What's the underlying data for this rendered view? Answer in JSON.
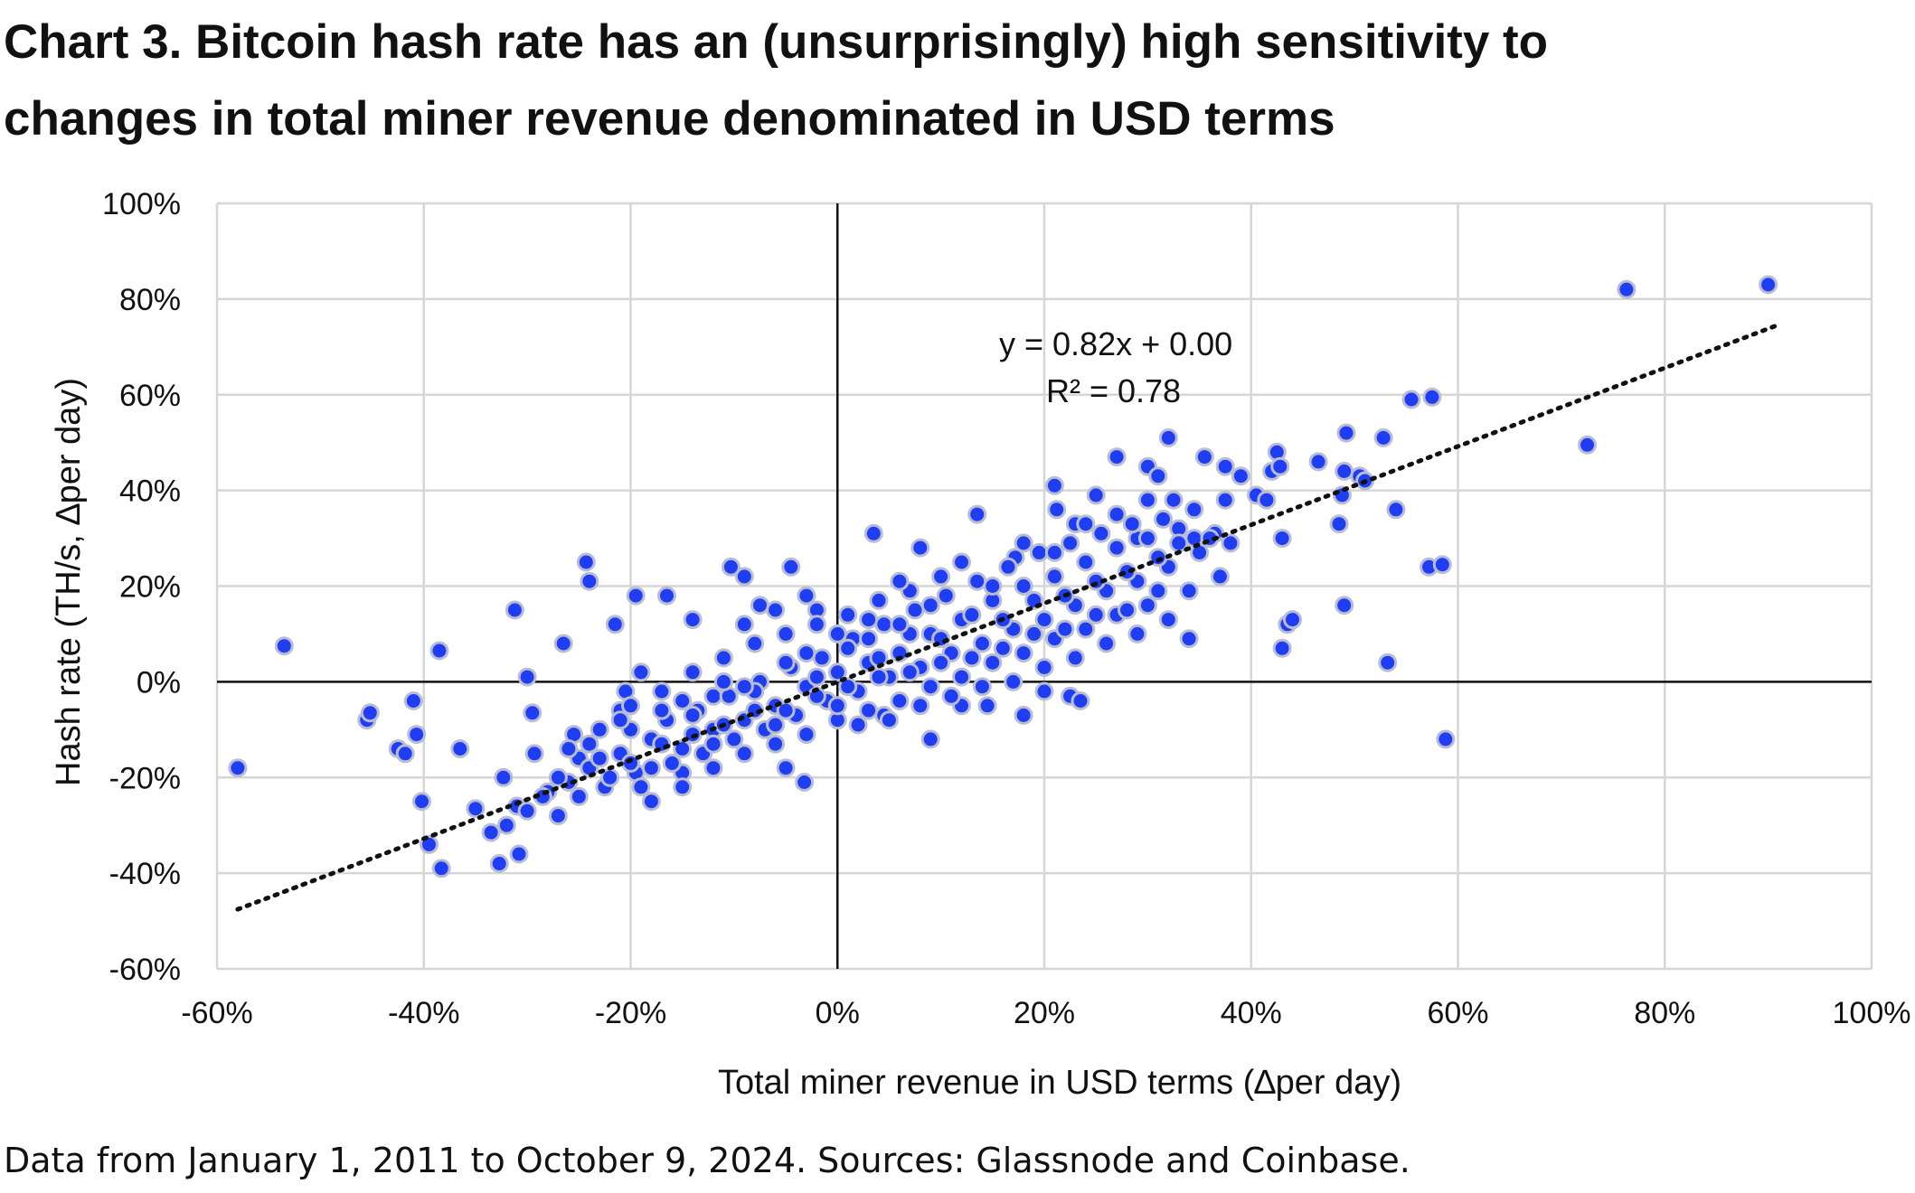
{
  "title_line1": "Chart 3. Bitcoin hash rate has an (unsurprisingly) high sensitivity to",
  "title_line2": "changes in total miner revenue denominated in USD terms",
  "source": "Data from January 1, 2011 to October 9, 2024. Sources: Glassnode and Coinbase.",
  "chart_data": {
    "type": "scatter",
    "xlabel": "Total miner revenue in USD terms (∆per day)",
    "ylabel": "Hash rate (TH/s, ∆per day)",
    "xlim": [
      -60,
      100
    ],
    "ylim": [
      -60,
      100
    ],
    "x_ticks": [
      "-60%",
      "-40%",
      "-20%",
      "0%",
      "20%",
      "40%",
      "60%",
      "80%",
      "100%"
    ],
    "y_ticks": [
      "100%",
      "80%",
      "60%",
      "40%",
      "20%",
      "0%",
      "-20%",
      "-40%",
      "-60%"
    ],
    "grid": true,
    "point_color": "#1f3df2",
    "point_edge_color": "#b9bdd4",
    "trendline": {
      "equation": "y = 0.82x + 0.00",
      "r_squared": "R² = 0.78",
      "slope": 0.82,
      "intercept": 0.0,
      "x_range": [
        -58,
        91
      ]
    },
    "series": [
      {
        "points": [
          [
            -58,
            -18
          ],
          [
            -53.5,
            7.5
          ],
          [
            -45.5,
            -8
          ],
          [
            -45.2,
            -6.5
          ],
          [
            -42.5,
            -14
          ],
          [
            -41.8,
            -15
          ],
          [
            -41,
            -4
          ],
          [
            -40.7,
            -11
          ],
          [
            -40.2,
            -25
          ],
          [
            -39.5,
            -34
          ],
          [
            -38.5,
            6.5
          ],
          [
            -38.3,
            -39
          ],
          [
            -36.5,
            -14
          ],
          [
            -35,
            -26.5
          ],
          [
            -33.5,
            -31.5
          ],
          [
            -32.7,
            -38
          ],
          [
            -32.3,
            -20
          ],
          [
            -32,
            -30
          ],
          [
            -31.2,
            15
          ],
          [
            -31,
            -26
          ],
          [
            -30.8,
            -36
          ],
          [
            -30,
            1
          ],
          [
            -29.5,
            -6.5
          ],
          [
            -29.3,
            -15
          ],
          [
            -28,
            -23
          ],
          [
            -26.5,
            8
          ],
          [
            -25.5,
            -11
          ],
          [
            -25,
            -16
          ],
          [
            -24.3,
            25
          ],
          [
            -24,
            21
          ],
          [
            -21.5,
            12
          ],
          [
            -21,
            -6
          ],
          [
            -20.5,
            -2
          ],
          [
            -19.5,
            18
          ],
          [
            -19,
            2
          ],
          [
            -16.5,
            18
          ],
          [
            -15,
            -19
          ],
          [
            -14,
            13
          ],
          [
            -12,
            -3
          ],
          [
            -10.3,
            24
          ],
          [
            -9,
            22
          ],
          [
            -7.5,
            16
          ],
          [
            -5,
            -18
          ],
          [
            -4.5,
            24
          ],
          [
            -3.2,
            -21
          ],
          [
            -2,
            15
          ],
          [
            3.5,
            31
          ],
          [
            4.5,
            -7
          ],
          [
            8,
            28
          ],
          [
            9,
            -12
          ],
          [
            12,
            -5
          ],
          [
            13.5,
            35
          ],
          [
            14.5,
            -5
          ],
          [
            17.2,
            26
          ],
          [
            18,
            -7
          ],
          [
            20,
            -2
          ],
          [
            21,
            41
          ],
          [
            21.2,
            36
          ],
          [
            22.5,
            -3
          ],
          [
            23,
            33
          ],
          [
            23.5,
            -4
          ],
          [
            25,
            39
          ],
          [
            27,
            47
          ],
          [
            29,
            30
          ],
          [
            30,
            45
          ],
          [
            31,
            43
          ],
          [
            32,
            51
          ],
          [
            32.5,
            38
          ],
          [
            34,
            9
          ],
          [
            34.5,
            30
          ],
          [
            35.5,
            47
          ],
          [
            36.5,
            31
          ],
          [
            37.5,
            45
          ],
          [
            38,
            29
          ],
          [
            39,
            43
          ],
          [
            40.5,
            39
          ],
          [
            41.5,
            38
          ],
          [
            42,
            44
          ],
          [
            42.5,
            48
          ],
          [
            42.8,
            45
          ],
          [
            43,
            30
          ],
          [
            43,
            7
          ],
          [
            43.5,
            12
          ],
          [
            44,
            13
          ],
          [
            46.5,
            46
          ],
          [
            48.5,
            33
          ],
          [
            48.8,
            39
          ],
          [
            49,
            44
          ],
          [
            49,
            16
          ],
          [
            49.2,
            52
          ],
          [
            50.5,
            43
          ],
          [
            51,
            42
          ],
          [
            52.8,
            51
          ],
          [
            53.2,
            4
          ],
          [
            54,
            36
          ],
          [
            55.5,
            59
          ],
          [
            57.2,
            24
          ],
          [
            57.5,
            59.5
          ],
          [
            58.5,
            24.5
          ],
          [
            58.8,
            -12
          ],
          [
            72.5,
            49.5
          ],
          [
            76.3,
            82
          ],
          [
            90,
            83
          ],
          [
            -30,
            -27
          ],
          [
            -28.5,
            -24
          ],
          [
            -27,
            -28
          ],
          [
            -26,
            -21
          ],
          [
            -24,
            -18
          ],
          [
            -22.5,
            -22
          ],
          [
            -21,
            -15
          ],
          [
            -19.5,
            -19
          ],
          [
            -18,
            -12
          ],
          [
            -16.5,
            -8
          ],
          [
            -15,
            -14
          ],
          [
            -13.5,
            -6
          ],
          [
            -12,
            -10
          ],
          [
            -10.5,
            -3
          ],
          [
            -9,
            -8
          ],
          [
            -7.5,
            0
          ],
          [
            -6,
            -5
          ],
          [
            -4.5,
            3
          ],
          [
            -3,
            -1
          ],
          [
            -1.5,
            5
          ],
          [
            0,
            2
          ],
          [
            1.5,
            9
          ],
          [
            3,
            4
          ],
          [
            4.5,
            12
          ],
          [
            6,
            6
          ],
          [
            7.5,
            15
          ],
          [
            9,
            10
          ],
          [
            10.5,
            18
          ],
          [
            12,
            13
          ],
          [
            13.5,
            21
          ],
          [
            15,
            17
          ],
          [
            16.5,
            24
          ],
          [
            18,
            20
          ],
          [
            19.5,
            27
          ],
          [
            21,
            22
          ],
          [
            22.5,
            29
          ],
          [
            24,
            25
          ],
          [
            25.5,
            31
          ],
          [
            27,
            28
          ],
          [
            28.5,
            33
          ],
          [
            30,
            30
          ],
          [
            31.5,
            34
          ],
          [
            33,
            32
          ],
          [
            34.5,
            36
          ],
          [
            36,
            30
          ],
          [
            37.5,
            38
          ],
          [
            -23,
            -10
          ],
          [
            -20,
            -5
          ],
          [
            -17,
            -2
          ],
          [
            -14,
            2
          ],
          [
            -11,
            5
          ],
          [
            -8,
            8
          ],
          [
            -5,
            10
          ],
          [
            -2,
            12
          ],
          [
            1,
            14
          ],
          [
            4,
            17
          ],
          [
            7,
            19
          ],
          [
            10,
            22
          ],
          [
            -25,
            -24
          ],
          [
            -22,
            -20
          ],
          [
            -19,
            -22
          ],
          [
            -16,
            -17
          ],
          [
            -13,
            -15
          ],
          [
            -10,
            -12
          ],
          [
            -7,
            -10
          ],
          [
            -4,
            -7
          ],
          [
            -1,
            -4
          ],
          [
            2,
            -2
          ],
          [
            5,
            1
          ],
          [
            8,
            3
          ],
          [
            11,
            6
          ],
          [
            14,
            8
          ],
          [
            17,
            11
          ],
          [
            20,
            13
          ],
          [
            23,
            16
          ],
          [
            26,
            19
          ],
          [
            29,
            21
          ],
          [
            32,
            24
          ],
          [
            35,
            27
          ],
          [
            -18,
            -25
          ],
          [
            -15,
            -22
          ],
          [
            -12,
            -18
          ],
          [
            -9,
            -15
          ],
          [
            -6,
            -13
          ],
          [
            -3,
            -11
          ],
          [
            0,
            -8
          ],
          [
            3,
            -6
          ],
          [
            6,
            -4
          ],
          [
            9,
            -1
          ],
          [
            12,
            1
          ],
          [
            15,
            4
          ],
          [
            18,
            6
          ],
          [
            21,
            9
          ],
          [
            24,
            11
          ],
          [
            27,
            14
          ],
          [
            30,
            16
          ],
          [
            -20,
            -10
          ],
          [
            -17,
            -6
          ],
          [
            -14,
            -11
          ],
          [
            -11,
            0
          ],
          [
            -8,
            -6
          ],
          [
            -5,
            4
          ],
          [
            -2,
            -3
          ],
          [
            1,
            7
          ],
          [
            4,
            1
          ],
          [
            7,
            10
          ],
          [
            10,
            4
          ],
          [
            13,
            14
          ],
          [
            16,
            7
          ],
          [
            19,
            17
          ],
          [
            22,
            11
          ],
          [
            25,
            21
          ],
          [
            28,
            15
          ],
          [
            31,
            26
          ],
          [
            34,
            19
          ],
          [
            37,
            22
          ],
          [
            -26,
            -14
          ],
          [
            -23,
            -16
          ],
          [
            -20,
            -17
          ],
          [
            -17,
            -13
          ],
          [
            -14,
            -7
          ],
          [
            -11,
            -9
          ],
          [
            -8,
            -2
          ],
          [
            -5,
            -6
          ],
          [
            -2,
            1
          ],
          [
            1,
            -1
          ],
          [
            4,
            5
          ],
          [
            7,
            2
          ],
          [
            10,
            9
          ],
          [
            13,
            5
          ],
          [
            16,
            13
          ],
          [
            19,
            10
          ],
          [
            22,
            18
          ],
          [
            25,
            14
          ],
          [
            28,
            23
          ],
          [
            31,
            19
          ],
          [
            -9,
            12
          ],
          [
            -6,
            15
          ],
          [
            -3,
            18
          ],
          [
            0,
            10
          ],
          [
            3,
            13
          ],
          [
            6,
            21
          ],
          [
            9,
            16
          ],
          [
            12,
            25
          ],
          [
            15,
            20
          ],
          [
            18,
            29
          ],
          [
            21,
            27
          ],
          [
            24,
            33
          ],
          [
            27,
            35
          ],
          [
            30,
            38
          ],
          [
            33,
            29
          ],
          [
            2,
            -9
          ],
          [
            5,
            -8
          ],
          [
            8,
            -5
          ],
          [
            11,
            -3
          ],
          [
            14,
            -1
          ],
          [
            17,
            0
          ],
          [
            20,
            3
          ],
          [
            23,
            5
          ],
          [
            26,
            8
          ],
          [
            29,
            10
          ],
          [
            32,
            13
          ],
          [
            -27,
            -20
          ],
          [
            -24,
            -13
          ],
          [
            -21,
            -8
          ],
          [
            -18,
            -18
          ],
          [
            -15,
            -4
          ],
          [
            -12,
            -13
          ],
          [
            -9,
            -1
          ],
          [
            -6,
            -9
          ],
          [
            -3,
            6
          ],
          [
            0,
            -5
          ],
          [
            3,
            9
          ],
          [
            6,
            12
          ]
        ]
      }
    ]
  }
}
